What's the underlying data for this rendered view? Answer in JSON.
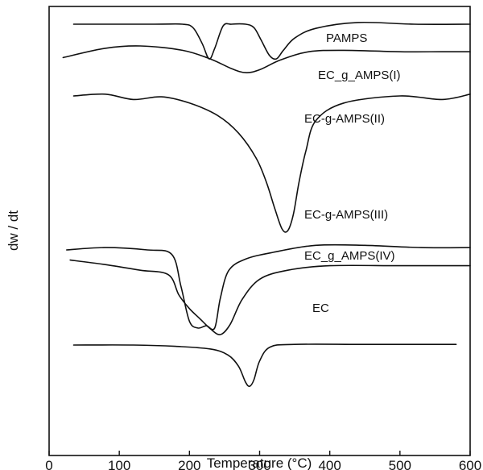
{
  "chart_data": {
    "type": "line",
    "title": "",
    "xlabel": "Temperature (°C)",
    "ylabel": "dw / dt",
    "xlim": [
      0,
      600
    ],
    "xticks": [
      0,
      100,
      200,
      300,
      400,
      500,
      600
    ],
    "y_ticks_shown": false,
    "grid": false,
    "legend": "none (curves labeled directly)",
    "series": [
      {
        "name": "PAMPS",
        "x": [
          35,
          150,
          190,
          205,
          218,
          228,
          236,
          248,
          260,
          280,
          292,
          302,
          314,
          324,
          334,
          350,
          380,
          440,
          520,
          600
        ],
        "y": [
          0,
          0,
          0,
          -0.1,
          -0.55,
          -1.0,
          -0.7,
          -0.05,
          0,
          0,
          -0.1,
          -0.45,
          -0.9,
          -1.0,
          -0.75,
          -0.4,
          -0.12,
          0.05,
          0,
          0
        ]
      },
      {
        "name": "EC_g_AMPS(I)",
        "x": [
          20,
          80,
          130,
          190,
          230,
          260,
          280,
          300,
          330,
          370,
          420,
          500,
          560,
          600
        ],
        "y": [
          0.1,
          0.42,
          0.5,
          0.35,
          0.05,
          -0.28,
          -0.42,
          -0.32,
          0.02,
          0.3,
          0.35,
          0.3,
          0.3,
          0.3
        ]
      },
      {
        "name": "EC-g-AMPS(II)",
        "x": [
          35,
          80,
          120,
          160,
          200,
          240,
          270,
          295,
          310,
          322,
          332,
          340,
          348,
          356,
          366,
          380,
          420,
          500,
          560,
          600
        ],
        "y": [
          0.5,
          0.6,
          0.3,
          0.45,
          0.1,
          -0.6,
          -1.6,
          -3.0,
          -4.4,
          -5.9,
          -7.0,
          -7.1,
          -6.2,
          -4.4,
          -2.6,
          -0.9,
          0.1,
          0.5,
          0.3,
          0.6
        ]
      },
      {
        "name": "EC-g-AMPS(III)",
        "x": [
          25,
          80,
          140,
          175,
          188,
          200,
          212,
          224,
          236,
          244,
          256,
          280,
          320,
          380,
          450,
          530,
          600
        ],
        "y": [
          0,
          0.05,
          0,
          -0.1,
          -0.8,
          -1.55,
          -1.7,
          -1.65,
          -1.7,
          -1.05,
          -0.45,
          -0.2,
          -0.05,
          0.1,
          0.1,
          0.05,
          0.05
        ]
      },
      {
        "name": "EC_g_AMPS(IV)",
        "x": [
          30,
          80,
          130,
          170,
          185,
          200,
          215,
          230,
          244,
          258,
          275,
          300,
          340,
          400,
          500,
          600
        ],
        "y": [
          0.55,
          0.35,
          0.1,
          -0.1,
          -1.0,
          -1.6,
          -2.05,
          -2.5,
          -2.75,
          -2.3,
          -1.2,
          -0.3,
          0.1,
          0.3,
          0.3,
          0.3
        ]
      },
      {
        "name": "EC",
        "x": [
          35,
          120,
          180,
          230,
          255,
          270,
          280,
          286,
          292,
          300,
          315,
          350,
          450,
          580
        ],
        "y": [
          0,
          0,
          -0.1,
          -0.3,
          -0.75,
          -1.6,
          -2.8,
          -3.1,
          -2.6,
          -1.2,
          -0.15,
          0.05,
          0.05,
          0.05
        ]
      }
    ]
  }
}
